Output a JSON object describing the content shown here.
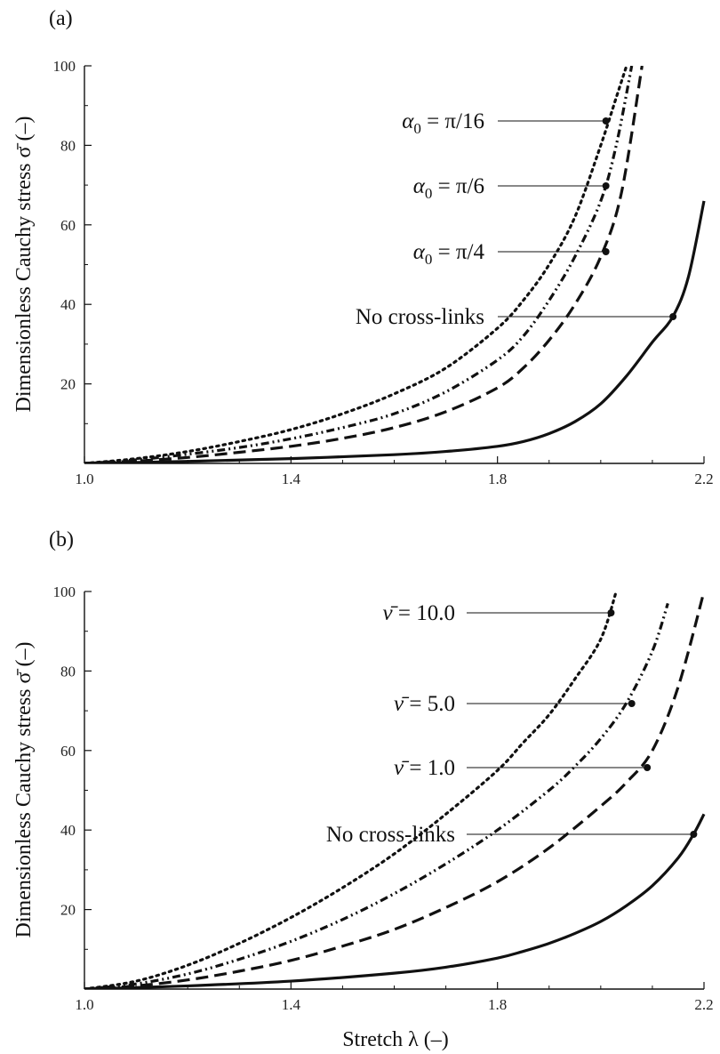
{
  "chart_data": [
    {
      "panel": "(a)",
      "type": "line",
      "xlabel": "Stretch λ (–)",
      "ylabel": "Dimensionless Cauchy stress σ̄  (–)",
      "xlim": [
        1.0,
        2.2
      ],
      "ylim": [
        0,
        100
      ],
      "xticks": [
        "1.0",
        "1.4",
        "1.8",
        "2.2"
      ],
      "yticks": [
        "20",
        "40",
        "60",
        "80",
        "100"
      ],
      "grid": false,
      "series": [
        {
          "name": "α0 = π/16",
          "style": "dotted",
          "x": [
            1.0,
            1.1,
            1.2,
            1.3,
            1.4,
            1.5,
            1.6,
            1.7,
            1.8,
            1.85,
            1.9,
            1.95,
            2.0,
            2.03,
            2.05
          ],
          "y": [
            0,
            1.2,
            3,
            5.5,
            8.5,
            12.5,
            17.5,
            24,
            34,
            41,
            50,
            62,
            80,
            92,
            100
          ],
          "marker": [
            2.01,
            86
          ]
        },
        {
          "name": "α0 = π/6",
          "style": "dash-dot-dot",
          "x": [
            1.0,
            1.1,
            1.2,
            1.3,
            1.4,
            1.5,
            1.6,
            1.7,
            1.8,
            1.85,
            1.9,
            1.95,
            2.0,
            2.03,
            2.06
          ],
          "y": [
            0,
            0.9,
            2.3,
            4,
            6.2,
            9,
            12.5,
            18,
            26,
            32,
            41,
            52,
            66,
            80,
            100
          ],
          "marker": [
            2.01,
            70
          ]
        },
        {
          "name": "α0 = π/4",
          "style": "dashed",
          "x": [
            1.0,
            1.1,
            1.2,
            1.3,
            1.4,
            1.5,
            1.6,
            1.7,
            1.8,
            1.85,
            1.9,
            1.95,
            2.0,
            2.04,
            2.08
          ],
          "y": [
            0,
            0.6,
            1.5,
            2.8,
            4.3,
            6.3,
            9,
            13,
            19,
            24,
            31,
            40,
            52,
            68,
            100
          ],
          "marker": [
            2.01,
            53.5
          ]
        },
        {
          "name": "No cross-links",
          "style": "solid",
          "x": [
            1.0,
            1.2,
            1.4,
            1.6,
            1.7,
            1.8,
            1.85,
            1.9,
            1.95,
            2.0,
            2.05,
            2.1,
            2.14,
            2.17,
            2.2
          ],
          "y": [
            0,
            0.5,
            1.2,
            2.2,
            3,
            4.3,
            5.5,
            7.5,
            10.5,
            15,
            22,
            30.5,
            37,
            47,
            66
          ],
          "marker": [
            2.14,
            37
          ]
        }
      ],
      "annotations": [
        {
          "lhs": "α",
          "sub": "0",
          "rhs": " = π/16",
          "series": 0
        },
        {
          "lhs": "α",
          "sub": "0",
          "rhs": " = π/6",
          "series": 1
        },
        {
          "lhs": "α",
          "sub": "0",
          "rhs": " = π/4",
          "series": 2
        },
        {
          "text": "No cross-links",
          "series": 3
        }
      ]
    },
    {
      "panel": "(b)",
      "type": "line",
      "xlabel": "Stretch λ (–)",
      "ylabel": "Dimensionless Cauchy stress σ̄  (–)",
      "xlim": [
        1.0,
        2.2
      ],
      "ylim": [
        0,
        100
      ],
      "xticks": [
        "1.0",
        "1.4",
        "1.8",
        "2.2"
      ],
      "yticks": [
        "20",
        "40",
        "60",
        "80",
        "100"
      ],
      "grid": false,
      "series": [
        {
          "name": "ν̄ = 10.0",
          "style": "dotted",
          "x": [
            1.0,
            1.1,
            1.2,
            1.3,
            1.4,
            1.5,
            1.6,
            1.7,
            1.8,
            1.85,
            1.9,
            1.95,
            2.0,
            2.03
          ],
          "y": [
            0,
            2,
            6,
            11.5,
            18,
            25.5,
            34,
            44,
            55,
            62,
            69,
            78,
            88,
            100
          ],
          "marker": [
            2.02,
            88
          ]
        },
        {
          "name": "ν̄ = 5.0",
          "style": "dash-dot-dot",
          "x": [
            1.0,
            1.1,
            1.2,
            1.3,
            1.4,
            1.5,
            1.6,
            1.7,
            1.8,
            1.9,
            1.95,
            2.0,
            2.05,
            2.1,
            2.13
          ],
          "y": [
            0,
            1.3,
            3.8,
            7.5,
            12,
            17.5,
            24,
            31.5,
            40,
            50,
            56,
            63,
            72,
            85,
            97
          ],
          "marker": [
            2.06,
            72
          ]
        },
        {
          "name": "ν̄ = 1.0",
          "style": "dashed",
          "x": [
            1.0,
            1.1,
            1.2,
            1.3,
            1.4,
            1.5,
            1.6,
            1.7,
            1.8,
            1.9,
            2.0,
            2.05,
            2.1,
            2.15,
            2.2
          ],
          "y": [
            0,
            0.8,
            2.3,
            4.5,
            7.2,
            10.8,
            15,
            20.5,
            27,
            35.5,
            46,
            52,
            60,
            76,
            100
          ],
          "marker": [
            2.09,
            55.5
          ]
        },
        {
          "name": "No cross-links",
          "style": "solid",
          "x": [
            1.0,
            1.2,
            1.4,
            1.6,
            1.7,
            1.8,
            1.85,
            1.9,
            1.95,
            2.0,
            2.05,
            2.1,
            2.15,
            2.18,
            2.2
          ],
          "y": [
            0,
            0.8,
            2,
            4,
            5.5,
            7.8,
            9.5,
            11.5,
            14,
            17,
            21,
            26,
            33,
            39,
            44
          ],
          "marker": [
            2.18,
            39
          ]
        }
      ],
      "annotations": [
        {
          "lhs": "ν̄",
          "rhs": " = 10.0",
          "series": 0
        },
        {
          "lhs": "ν̄",
          "rhs": " = 5.0",
          "series": 1
        },
        {
          "lhs": "ν̄",
          "rhs": " = 1.0",
          "series": 2
        },
        {
          "text": "No cross-links",
          "series": 3
        }
      ]
    }
  ]
}
